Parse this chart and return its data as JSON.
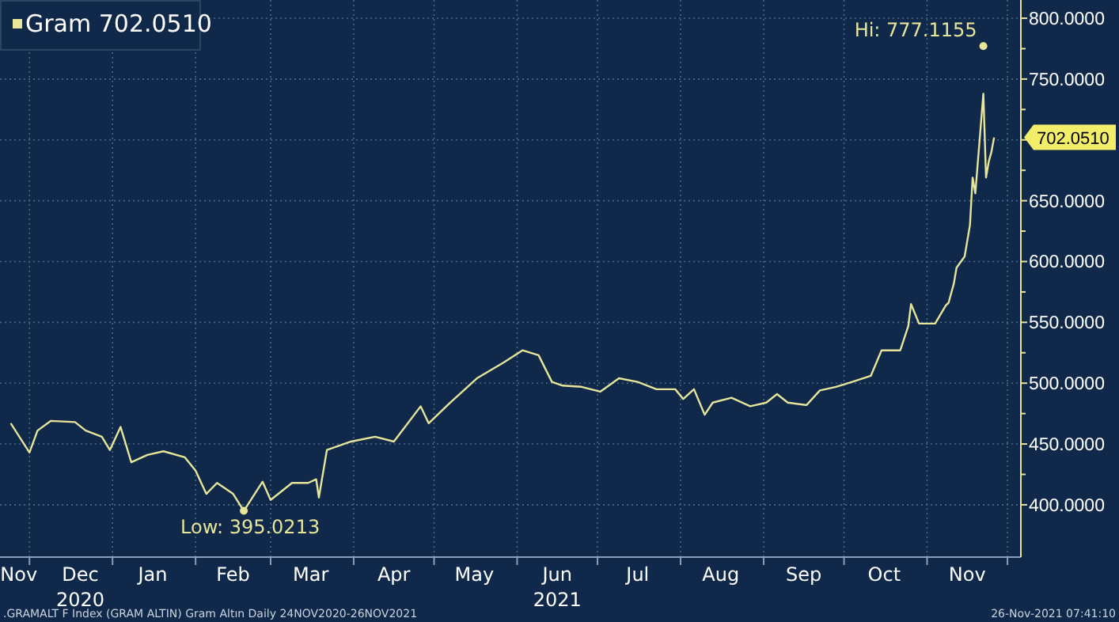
{
  "chart_data": {
    "type": "line",
    "legend": "top left",
    "grid": true,
    "marker": "none",
    "line_style": "solid",
    "xlim": [
      "2020-11-20",
      "2021-12-06"
    ],
    "ylim": [
      357,
      815
    ],
    "xticks": [
      {
        "value": "2020-12-01",
        "label": null
      },
      {
        "value": "2021-01-01",
        "label": null
      },
      {
        "value": "2021-02-01",
        "label": null
      },
      {
        "value": "2021-03-01",
        "label": null
      },
      {
        "value": "2021-04-01",
        "label": null
      },
      {
        "value": "2021-05-01",
        "label": null
      },
      {
        "value": "2021-06-01",
        "label": null
      },
      {
        "value": "2021-07-01",
        "label": null
      },
      {
        "value": "2021-08-01",
        "label": null
      },
      {
        "value": "2021-09-01",
        "label": null
      },
      {
        "value": "2021-10-01",
        "label": null
      },
      {
        "value": "2021-11-01",
        "label": null
      },
      {
        "value": "2021-12-01",
        "label": null
      },
      {
        "value": "2020-11-27",
        "label": "Nov"
      },
      {
        "value": "2020-12-20",
        "label": "Dec\n2020"
      },
      {
        "value": "2021-01-16",
        "label": "Jan"
      },
      {
        "value": "2021-02-15",
        "label": "Feb"
      },
      {
        "value": "2021-03-16",
        "label": "Mar"
      },
      {
        "value": "2021-04-16",
        "label": "Apr"
      },
      {
        "value": "2021-05-16",
        "label": "May"
      },
      {
        "value": "2021-06-16",
        "label": "Jun\n2021"
      },
      {
        "value": "2021-07-16",
        "label": "Jul"
      },
      {
        "value": "2021-08-16",
        "label": "Aug"
      },
      {
        "value": "2021-09-16",
        "label": "Sep"
      },
      {
        "value": "2021-10-16",
        "label": "Oct"
      },
      {
        "value": "2021-11-16",
        "label": "Nov"
      }
    ],
    "yticks": [
      {
        "value": 400,
        "label": "400.0000"
      },
      {
        "value": 425,
        "label": null
      },
      {
        "value": 450,
        "label": "450.0000"
      },
      {
        "value": 475,
        "label": null
      },
      {
        "value": 500,
        "label": "500.0000"
      },
      {
        "value": 525,
        "label": null
      },
      {
        "value": 550,
        "label": "550.0000"
      },
      {
        "value": 575,
        "label": null
      },
      {
        "value": 600,
        "label": "600.0000"
      },
      {
        "value": 625,
        "label": null
      },
      {
        "value": 650,
        "label": "650.0000"
      },
      {
        "value": 675,
        "label": null
      },
      {
        "value": 700,
        "label": null
      },
      {
        "value": 725,
        "label": null
      },
      {
        "value": 750,
        "label": "750.0000"
      },
      {
        "value": 775,
        "label": null
      },
      {
        "value": 800,
        "label": "800.0000"
      }
    ],
    "x": [
      "2020-11-24",
      "2020-12-01",
      "2020-12-04",
      "2020-12-09",
      "2020-12-18",
      "2020-12-22",
      "2020-12-28",
      "2020-12-31",
      "2021-01-04",
      "2021-01-08",
      "2021-01-14",
      "2021-01-20",
      "2021-01-28",
      "2021-02-01",
      "2021-02-05",
      "2021-02-09",
      "2021-02-15",
      "2021-02-19",
      "2021-02-26",
      "2021-03-01",
      "2021-03-09",
      "2021-03-15",
      "2021-03-18",
      "2021-03-19",
      "2021-03-22",
      "2021-03-31",
      "2021-04-09",
      "2021-04-16",
      "2021-04-26",
      "2021-04-29",
      "2021-05-07",
      "2021-05-17",
      "2021-05-27",
      "2021-06-03",
      "2021-06-09",
      "2021-06-14",
      "2021-06-18",
      "2021-06-25",
      "2021-07-02",
      "2021-07-09",
      "2021-07-16",
      "2021-07-23",
      "2021-07-30",
      "2021-08-02",
      "2021-08-06",
      "2021-08-10",
      "2021-08-13",
      "2021-08-20",
      "2021-08-27",
      "2021-09-02",
      "2021-09-06",
      "2021-09-10",
      "2021-09-17",
      "2021-09-22",
      "2021-09-28",
      "2021-10-04",
      "2021-10-11",
      "2021-10-15",
      "2021-10-22",
      "2021-10-25",
      "2021-10-26",
      "2021-10-29",
      "2021-11-04",
      "2021-11-08",
      "2021-11-09",
      "2021-11-11",
      "2021-11-12",
      "2021-11-15",
      "2021-11-17",
      "2021-11-18",
      "2021-11-19",
      "2021-11-22",
      "2021-11-23",
      "2021-11-24",
      "2021-11-25",
      "2021-11-26"
    ],
    "series": [
      {
        "name": "Gram 702.0510",
        "color": "#e6e59a",
        "values": [
          467,
          443,
          461,
          469,
          468,
          461,
          456,
          445,
          464,
          435,
          441,
          444,
          439,
          428,
          409,
          418,
          409,
          395,
          419,
          404,
          418,
          418,
          421,
          406,
          445,
          452,
          456,
          452,
          481,
          467,
          484,
          504,
          517,
          527,
          523,
          501,
          498,
          497,
          493,
          504,
          501,
          495,
          495,
          487,
          495,
          474,
          484,
          488,
          481,
          484,
          491,
          484,
          482,
          494,
          497,
          501,
          506,
          527,
          527,
          547,
          565,
          549,
          549,
          564,
          566,
          582,
          595,
          604,
          630,
          669,
          656,
          738,
          669,
          682,
          690,
          702
        ]
      }
    ],
    "annotations": [
      {
        "text": "Low: 395.0213",
        "x": "2021-02-19",
        "y": 395.0213
      },
      {
        "text": "Hi: 777.1155",
        "x": "2021-11-22",
        "y": 777.1155
      },
      {
        "text": "702.0510",
        "x": "2021-11-26",
        "y": 702.051
      },
      ".GRAMALT F Index (GRAM ALTIN) Gram Altın  Daily 24NOV2020-26NOV2021",
      "26-Nov-2021 07:41:10"
    ]
  }
}
